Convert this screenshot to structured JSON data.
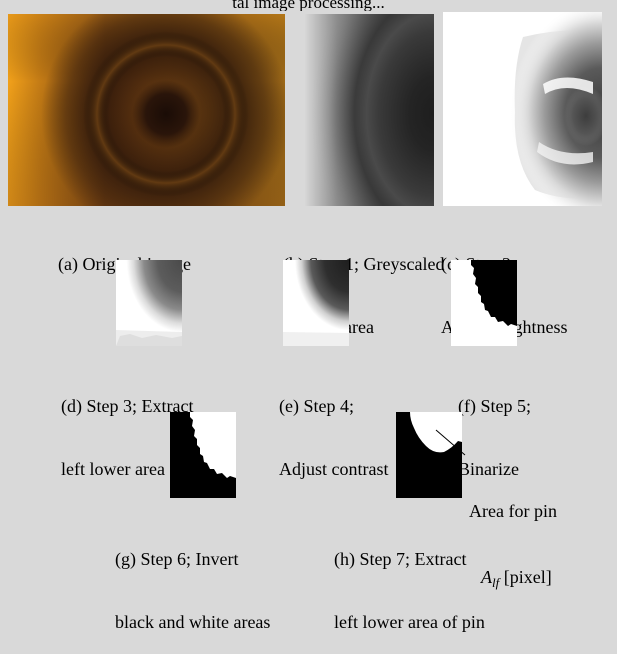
{
  "top_fragment": "tal image processing...",
  "panels": {
    "a": {
      "caption_lines": [
        "(a) Original image"
      ]
    },
    "b": {
      "caption_lines": [
        "(b) Step 1; Greyscaled",
        "left half area"
      ]
    },
    "c": {
      "caption_lines": [
        "(c) Step 2;",
        "Adjust brightness"
      ]
    },
    "d": {
      "caption_lines": [
        "(d) Step 3; Extract",
        "left lower area"
      ]
    },
    "e": {
      "caption_lines": [
        "(e) Step 4;",
        "Adjust contrast"
      ]
    },
    "f": {
      "caption_lines": [
        "(f) Step 5;",
        "Binarize"
      ]
    },
    "g": {
      "caption_lines": [
        "(g) Step 6; Invert",
        "black and white areas"
      ]
    },
    "h": {
      "caption_lines": [
        "(h) Step 7; Extract",
        "left lower area of pin"
      ]
    }
  },
  "annotation": {
    "line1": "Area for pin",
    "symbol": "A",
    "subscript": "lf",
    "unit": " [pixel]"
  }
}
